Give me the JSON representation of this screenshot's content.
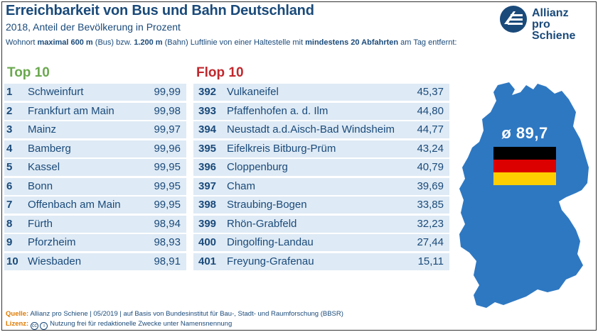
{
  "header": {
    "title": "Erreichbarkeit von Bus und Bahn Deutschland",
    "subtitle": "2018, Anteil der Bevölkerung in Prozent",
    "note_1": "Wohnort ",
    "note_2": "maximal 600 m",
    "note_3": " (Bus) bzw. ",
    "note_4": "1.200 m",
    "note_5": " (Bahn) Luftlinie von einer Haltestelle mit ",
    "note_6": "mindestens 20 Abfahrten",
    "note_7": " am Tag entfernt:"
  },
  "logo": {
    "line1": "Allianz",
    "line2": "pro Schiene"
  },
  "chart_data": {
    "type": "table",
    "title": "Erreichbarkeit von Bus und Bahn Deutschland",
    "average_label": "ø 89,7",
    "average": 89.7,
    "top": {
      "heading": "Top 10",
      "rows": [
        {
          "rank": "1",
          "name": "Schweinfurt",
          "value": "99,99"
        },
        {
          "rank": "2",
          "name": "Frankfurt am Main",
          "value": "99,98"
        },
        {
          "rank": "3",
          "name": "Mainz",
          "value": "99,97"
        },
        {
          "rank": "4",
          "name": "Bamberg",
          "value": "99,96"
        },
        {
          "rank": "5",
          "name": "Kassel",
          "value": "99,95"
        },
        {
          "rank": "6",
          "name": "Bonn",
          "value": "99,95"
        },
        {
          "rank": "7",
          "name": "Offenbach am Main",
          "value": "99,95"
        },
        {
          "rank": "8",
          "name": "Fürth",
          "value": "98,94"
        },
        {
          "rank": "9",
          "name": "Pforzheim",
          "value": "98,93"
        },
        {
          "rank": "10",
          "name": "Wiesbaden",
          "value": "98,91"
        }
      ]
    },
    "flop": {
      "heading": "Flop 10",
      "rows": [
        {
          "rank": "392",
          "name": "Vulkaneifel",
          "value": "45,37"
        },
        {
          "rank": "393",
          "name": "Pfaffenhofen a. d. Ilm",
          "value": "44,80"
        },
        {
          "rank": "394",
          "name": "Neustadt a.d.Aisch-Bad Windsheim",
          "value": "44,77"
        },
        {
          "rank": "395",
          "name": "Eifelkreis Bitburg-Prüm",
          "value": "43,24"
        },
        {
          "rank": "396",
          "name": "Cloppenburg",
          "value": "40,79"
        },
        {
          "rank": "397",
          "name": "Cham",
          "value": "39,69"
        },
        {
          "rank": "398",
          "name": "Straubing-Bogen",
          "value": "33,85"
        },
        {
          "rank": "399",
          "name": "Rhön-Grabfeld",
          "value": "32,23"
        },
        {
          "rank": "400",
          "name": "Dingolfing-Landau",
          "value": "27,44"
        },
        {
          "rank": "401",
          "name": "Freyung-Grafenau",
          "value": "15,11"
        }
      ]
    }
  },
  "colors": {
    "primary": "#1a4a7a",
    "top_green": "#6aa84f",
    "flop_red": "#c0282d",
    "row_bg": "#deeaf5",
    "map_fill": "#2e78c2",
    "flag_black": "#000000",
    "flag_red": "#dd0000",
    "flag_gold": "#ffce00"
  },
  "footer": {
    "source_label": "Quelle:",
    "source_text": " Allianz pro Schiene | 05/2019 | auf Basis von Bundesinstitut für Bau-, Stadt- und Raumforschung (BBSR)",
    "license_label": "Lizenz:",
    "license_text": " Nutzung frei für redaktionelle Zwecke unter Namensnennung",
    "cc_mark": "cc",
    "by_mark": "i"
  }
}
